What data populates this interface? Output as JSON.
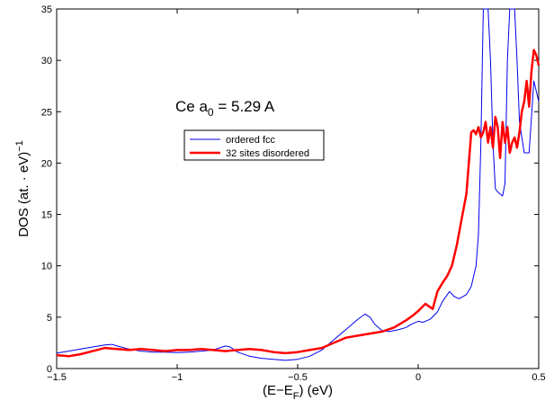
{
  "chart_data": {
    "type": "line",
    "xlabel": "(E−E",
    "xlabel_sub": "F",
    "xlabel_suffix": ") (eV)",
    "ylabel": "DOS (at. · eV)",
    "ylabel_sup": "−1",
    "xlim": [
      -1.5,
      0.5
    ],
    "ylim": [
      0,
      35
    ],
    "xticks": [
      -1.5,
      -1,
      -0.5,
      0,
      0.5
    ],
    "xtick_labels": [
      "−1.5",
      "−1",
      "−0.5",
      "0",
      "0.5"
    ],
    "yticks": [
      0,
      5,
      10,
      15,
      20,
      25,
      30,
      35
    ],
    "ytick_labels": [
      "0",
      "5",
      "10",
      "15",
      "20",
      "25",
      "30",
      "35"
    ],
    "grid": false,
    "legend_position": "upper-left",
    "annotation": {
      "prefix": "Ce a",
      "sub": "0",
      "suffix": " = 5.29 A"
    },
    "series": [
      {
        "name": "ordered fcc",
        "color": "#0000ee",
        "x": [
          -1.5,
          -1.45,
          -1.4,
          -1.35,
          -1.3,
          -1.27,
          -1.25,
          -1.2,
          -1.15,
          -1.1,
          -1.05,
          -1.0,
          -0.95,
          -0.9,
          -0.85,
          -0.8,
          -0.78,
          -0.75,
          -0.7,
          -0.65,
          -0.6,
          -0.55,
          -0.5,
          -0.45,
          -0.4,
          -0.35,
          -0.3,
          -0.28,
          -0.25,
          -0.22,
          -0.2,
          -0.18,
          -0.15,
          -0.12,
          -0.1,
          -0.08,
          -0.05,
          -0.03,
          0.0,
          0.02,
          0.05,
          0.08,
          0.1,
          0.13,
          0.15,
          0.17,
          0.2,
          0.22,
          0.24,
          0.25,
          0.26,
          0.27,
          0.28,
          0.29,
          0.3,
          0.31,
          0.32,
          0.33,
          0.34,
          0.35,
          0.36,
          0.37,
          0.38,
          0.39,
          0.4,
          0.41,
          0.42,
          0.44,
          0.46,
          0.48,
          0.5
        ],
        "y": [
          1.5,
          1.7,
          1.9,
          2.1,
          2.3,
          2.35,
          2.2,
          1.9,
          1.7,
          1.6,
          1.6,
          1.55,
          1.6,
          1.7,
          1.8,
          2.2,
          2.1,
          1.6,
          1.2,
          1.0,
          0.9,
          0.8,
          0.9,
          1.2,
          1.8,
          2.8,
          3.8,
          4.2,
          4.8,
          5.3,
          5.0,
          4.3,
          3.7,
          3.6,
          3.7,
          3.8,
          4.0,
          4.3,
          4.6,
          4.5,
          4.8,
          5.5,
          6.5,
          7.5,
          7.0,
          6.8,
          7.2,
          8.0,
          10.0,
          13.0,
          22.0,
          35.0,
          35.0,
          35.0,
          30.0,
          22.0,
          17.5,
          17.2,
          17.0,
          16.8,
          18.0,
          30.0,
          35.0,
          35.0,
          35.0,
          30.0,
          24.0,
          21.0,
          21.0,
          28.0,
          26.0
        ]
      },
      {
        "name": "32 sites disordered",
        "color": "#ff0000",
        "x": [
          -1.5,
          -1.45,
          -1.4,
          -1.35,
          -1.3,
          -1.25,
          -1.2,
          -1.15,
          -1.1,
          -1.05,
          -1.0,
          -0.95,
          -0.9,
          -0.85,
          -0.8,
          -0.75,
          -0.7,
          -0.65,
          -0.6,
          -0.55,
          -0.5,
          -0.45,
          -0.4,
          -0.35,
          -0.3,
          -0.25,
          -0.2,
          -0.15,
          -0.1,
          -0.05,
          -0.02,
          0.0,
          0.03,
          0.06,
          0.08,
          0.1,
          0.12,
          0.14,
          0.16,
          0.18,
          0.2,
          0.21,
          0.22,
          0.23,
          0.24,
          0.25,
          0.26,
          0.27,
          0.28,
          0.29,
          0.3,
          0.31,
          0.32,
          0.33,
          0.34,
          0.35,
          0.36,
          0.37,
          0.38,
          0.39,
          0.4,
          0.41,
          0.42,
          0.43,
          0.44,
          0.45,
          0.46,
          0.47,
          0.48,
          0.49,
          0.5
        ],
        "y": [
          1.3,
          1.2,
          1.4,
          1.7,
          2.0,
          1.9,
          1.8,
          1.9,
          1.8,
          1.7,
          1.8,
          1.8,
          1.9,
          1.8,
          1.7,
          1.8,
          1.9,
          1.8,
          1.6,
          1.5,
          1.6,
          1.8,
          2.0,
          2.5,
          3.0,
          3.2,
          3.4,
          3.6,
          4.0,
          4.7,
          5.2,
          5.6,
          6.3,
          5.8,
          7.5,
          8.3,
          9.0,
          10.0,
          12.0,
          14.5,
          17.0,
          20.0,
          23.0,
          23.2,
          22.8,
          23.5,
          22.5,
          23.0,
          24.0,
          22.0,
          23.5,
          21.5,
          24.5,
          23.5,
          20.5,
          24.0,
          22.0,
          23.5,
          21.0,
          22.0,
          22.5,
          21.5,
          23.0,
          25.0,
          26.0,
          28.0,
          25.5,
          29.0,
          31.0,
          30.5,
          29.5
        ]
      }
    ]
  }
}
